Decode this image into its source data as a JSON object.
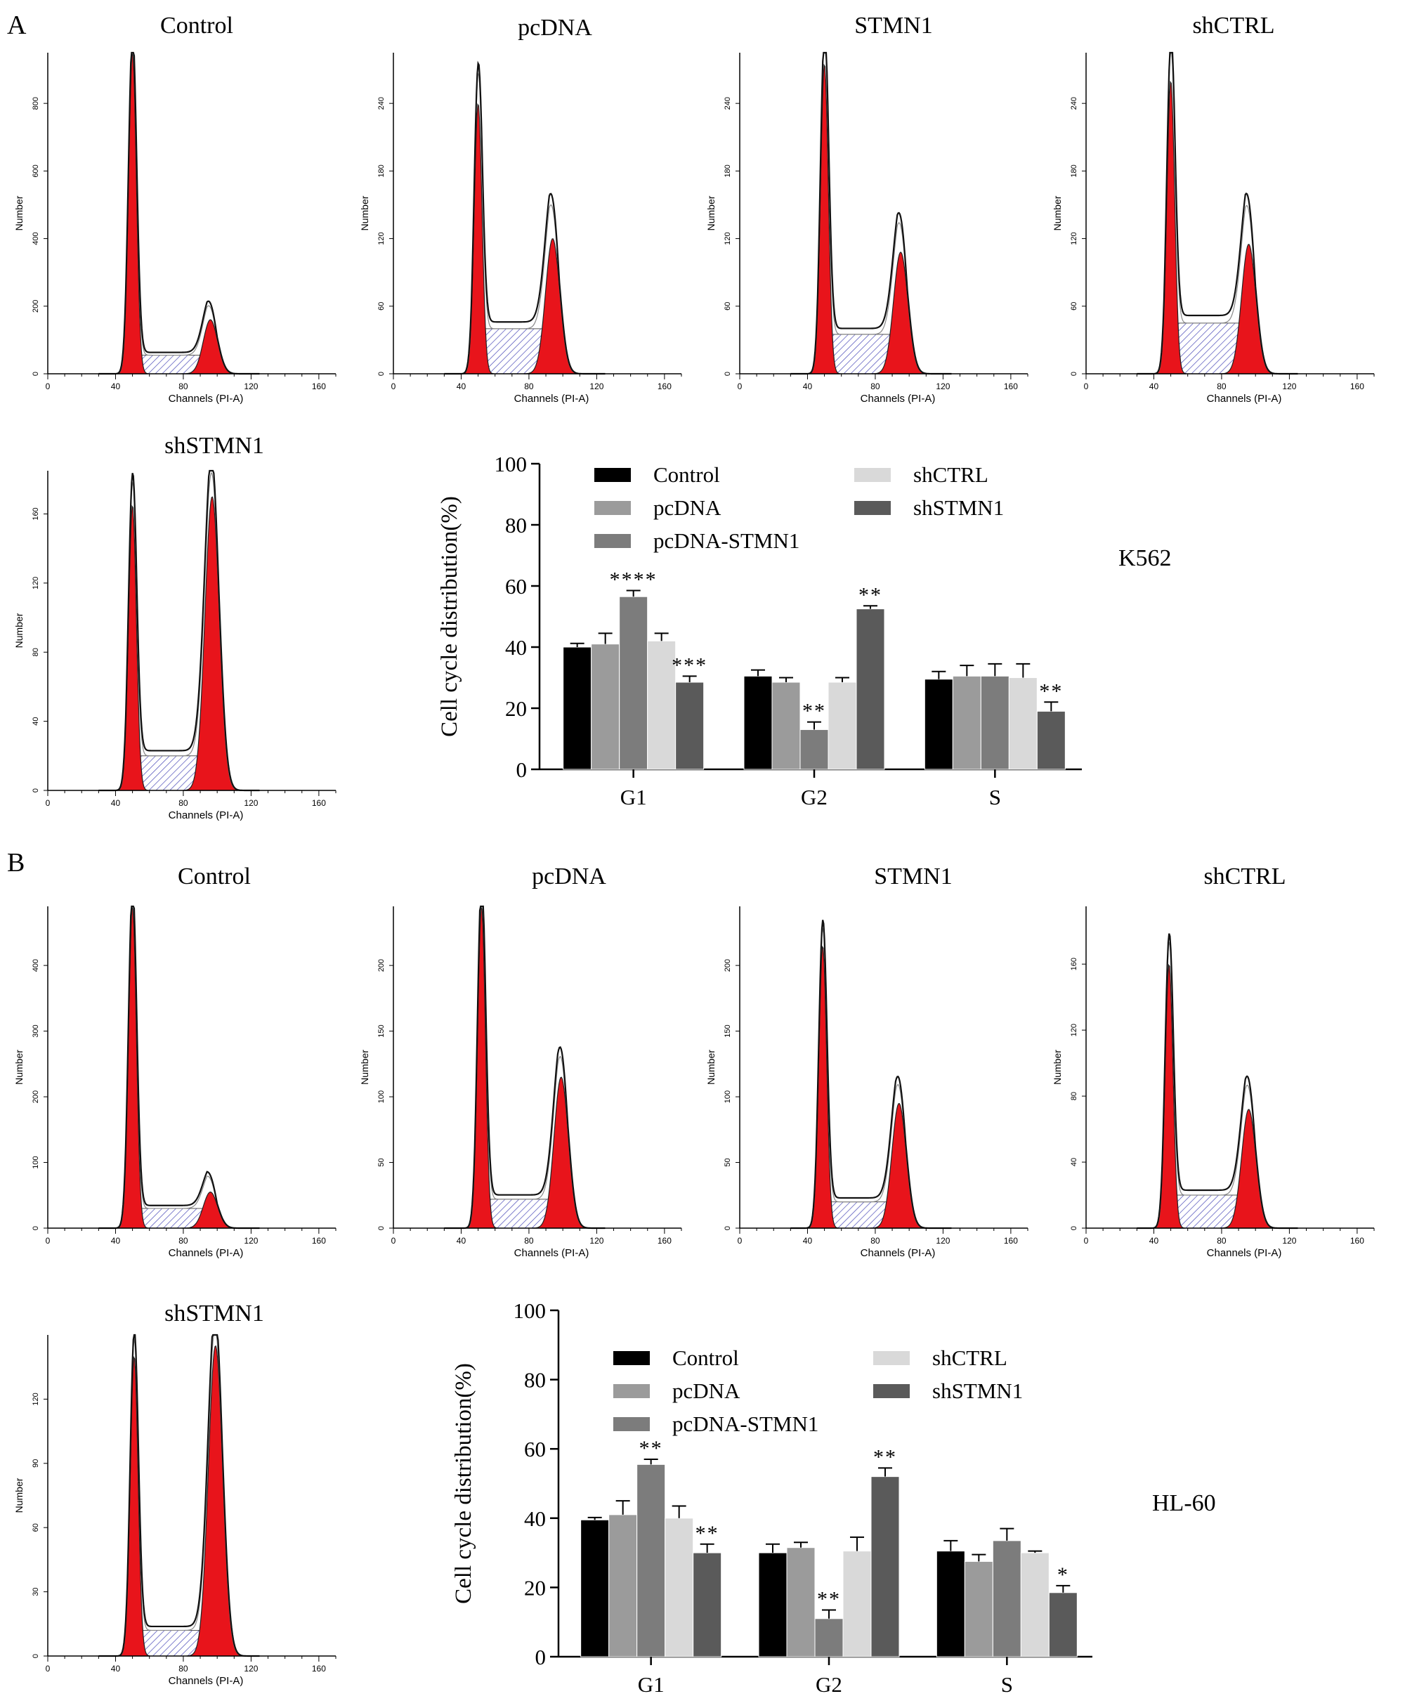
{
  "panels": [
    {
      "letter": "A",
      "cell_line": "K562"
    },
    {
      "letter": "B",
      "cell_line": "HL-60"
    }
  ],
  "histogram_common": {
    "x_axis_label": "Channels (PI-A)",
    "y_axis_label": "Number",
    "x_ticks": [
      "0",
      "40",
      "80",
      "120",
      "160"
    ]
  },
  "bar_common": {
    "y_axis_label": "Cell cycle distribution(%)",
    "y_ticks": [
      "0",
      "20",
      "40",
      "60",
      "80",
      "100"
    ],
    "categories": [
      "G1",
      "G2",
      "S"
    ],
    "legend": [
      "Control",
      "pcDNA",
      "pcDNA-STMN1",
      "shCTRL",
      "shSTMN1"
    ]
  },
  "colors": {
    "peak_fill": "#e8141b",
    "bars": [
      "#000000",
      "#9b9b9b",
      "#7c7c7c",
      "#d9d9d9",
      "#5a5a5a"
    ]
  },
  "chart_data": [
    {
      "type": "area",
      "panel": "A",
      "title": "Control",
      "y_ticks": [
        "0",
        "200",
        "400",
        "600",
        "800"
      ],
      "ylim": [
        0,
        950
      ],
      "g1_peak_channel": 50,
      "g1_peak_count": 950,
      "g2_peak_channel": 96,
      "g2_peak_count": 160,
      "s_level": 55
    },
    {
      "type": "area",
      "panel": "A",
      "title": "pcDNA",
      "y_ticks": [
        "0",
        "60",
        "120",
        "180",
        "240"
      ],
      "ylim": [
        0,
        285
      ],
      "g1_peak_channel": 50,
      "g1_peak_count": 240,
      "g2_peak_channel": 94,
      "g2_peak_count": 120,
      "s_level": 40
    },
    {
      "type": "area",
      "panel": "A",
      "title": "STMN1",
      "y_ticks": [
        "0",
        "60",
        "120",
        "180",
        "240"
      ],
      "ylim": [
        0,
        285
      ],
      "g1_peak_channel": 50,
      "g1_peak_count": 275,
      "g2_peak_channel": 95,
      "g2_peak_count": 108,
      "s_level": 35
    },
    {
      "type": "area",
      "panel": "A",
      "title": "shCTRL",
      "y_ticks": [
        "0",
        "60",
        "120",
        "180",
        "240"
      ],
      "ylim": [
        0,
        285
      ],
      "g1_peak_channel": 50,
      "g1_peak_count": 260,
      "g2_peak_channel": 96,
      "g2_peak_count": 115,
      "s_level": 45
    },
    {
      "type": "area",
      "panel": "A",
      "title": "shSTMN1",
      "y_ticks": [
        "0",
        "40",
        "80",
        "120",
        "160"
      ],
      "ylim": [
        0,
        185
      ],
      "g1_peak_channel": 50,
      "g1_peak_count": 165,
      "g2_peak_channel": 97,
      "g2_peak_count": 170,
      "s_level": 20
    },
    {
      "type": "bar",
      "panel": "A",
      "categories": [
        "G1",
        "G2",
        "S"
      ],
      "ylabel": "Cell cycle distribution(%)",
      "ylim": [
        0,
        100
      ],
      "series": [
        {
          "name": "Control",
          "values": [
            40,
            30.5,
            29.5
          ],
          "errors": [
            1.2,
            2,
            2.5
          ]
        },
        {
          "name": "pcDNA",
          "values": [
            41,
            28.5,
            30.5
          ],
          "errors": [
            3.5,
            1.5,
            3.5
          ]
        },
        {
          "name": "pcDNA-STMN1",
          "values": [
            56.5,
            13,
            30.5
          ],
          "errors": [
            2,
            2.5,
            4
          ]
        },
        {
          "name": "shCTRL",
          "values": [
            42,
            28.5,
            30
          ],
          "errors": [
            2.5,
            1.5,
            4.5
          ]
        },
        {
          "name": "shSTMN1",
          "values": [
            28.5,
            52.5,
            19
          ],
          "errors": [
            2,
            1,
            3
          ]
        }
      ],
      "significance": [
        [
          "",
          "",
          "****",
          "",
          "***"
        ],
        [
          "",
          "",
          "**",
          "",
          "**"
        ],
        [
          "",
          "",
          "",
          "",
          "**"
        ]
      ]
    },
    {
      "type": "area",
      "panel": "B",
      "title": "Control",
      "y_ticks": [
        "0",
        "100",
        "200",
        "300",
        "400"
      ],
      "ylim": [
        0,
        490
      ],
      "g1_peak_channel": 50,
      "g1_peak_count": 490,
      "g2_peak_channel": 96,
      "g2_peak_count": 55,
      "s_level": 30
    },
    {
      "type": "area",
      "panel": "B",
      "title": "pcDNA",
      "y_ticks": [
        "0",
        "50",
        "100",
        "150",
        "200"
      ],
      "ylim": [
        0,
        245
      ],
      "g1_peak_channel": 52,
      "g1_peak_count": 245,
      "g2_peak_channel": 99,
      "g2_peak_count": 115,
      "s_level": 22
    },
    {
      "type": "area",
      "panel": "B",
      "title": "STMN1",
      "y_ticks": [
        "0",
        "50",
        "100",
        "150",
        "200"
      ],
      "ylim": [
        0,
        245
      ],
      "g1_peak_channel": 49,
      "g1_peak_count": 215,
      "g2_peak_channel": 94,
      "g2_peak_count": 95,
      "s_level": 20
    },
    {
      "type": "area",
      "panel": "B",
      "title": "shCTRL",
      "y_ticks": [
        "0",
        "40",
        "80",
        "120",
        "160"
      ],
      "ylim": [
        0,
        195
      ],
      "g1_peak_channel": 49,
      "g1_peak_count": 160,
      "g2_peak_channel": 96,
      "g2_peak_count": 72,
      "s_level": 20
    },
    {
      "type": "area",
      "panel": "B",
      "title": "shSTMN1",
      "y_ticks": [
        "0",
        "30",
        "60",
        "90",
        "120"
      ],
      "ylim": [
        0,
        150
      ],
      "g1_peak_channel": 51,
      "g1_peak_count": 140,
      "g2_peak_channel": 99,
      "g2_peak_count": 145,
      "s_level": 12
    },
    {
      "type": "bar",
      "panel": "B",
      "categories": [
        "G1",
        "G2",
        "S"
      ],
      "ylabel": "Cell cycle distribution(%)",
      "ylim": [
        0,
        100
      ],
      "series": [
        {
          "name": "Control",
          "values": [
            39.5,
            30,
            30.5
          ],
          "errors": [
            0.7,
            2.5,
            3
          ]
        },
        {
          "name": "pcDNA",
          "values": [
            41,
            31.5,
            27.5
          ],
          "errors": [
            4,
            1.5,
            2
          ]
        },
        {
          "name": "pcDNA-STMN1",
          "values": [
            55.5,
            11,
            33.5
          ],
          "errors": [
            1.5,
            2.5,
            3.5
          ]
        },
        {
          "name": "shCTRL",
          "values": [
            40,
            30.5,
            30
          ],
          "errors": [
            3.5,
            4,
            0.5
          ]
        },
        {
          "name": "shSTMN1",
          "values": [
            30,
            52,
            18.5
          ],
          "errors": [
            2.5,
            2.5,
            2
          ]
        }
      ],
      "significance": [
        [
          "",
          "",
          "**",
          "",
          "**"
        ],
        [
          "",
          "",
          "**",
          "",
          "**"
        ],
        [
          "",
          "",
          "",
          "",
          "*"
        ]
      ]
    }
  ]
}
